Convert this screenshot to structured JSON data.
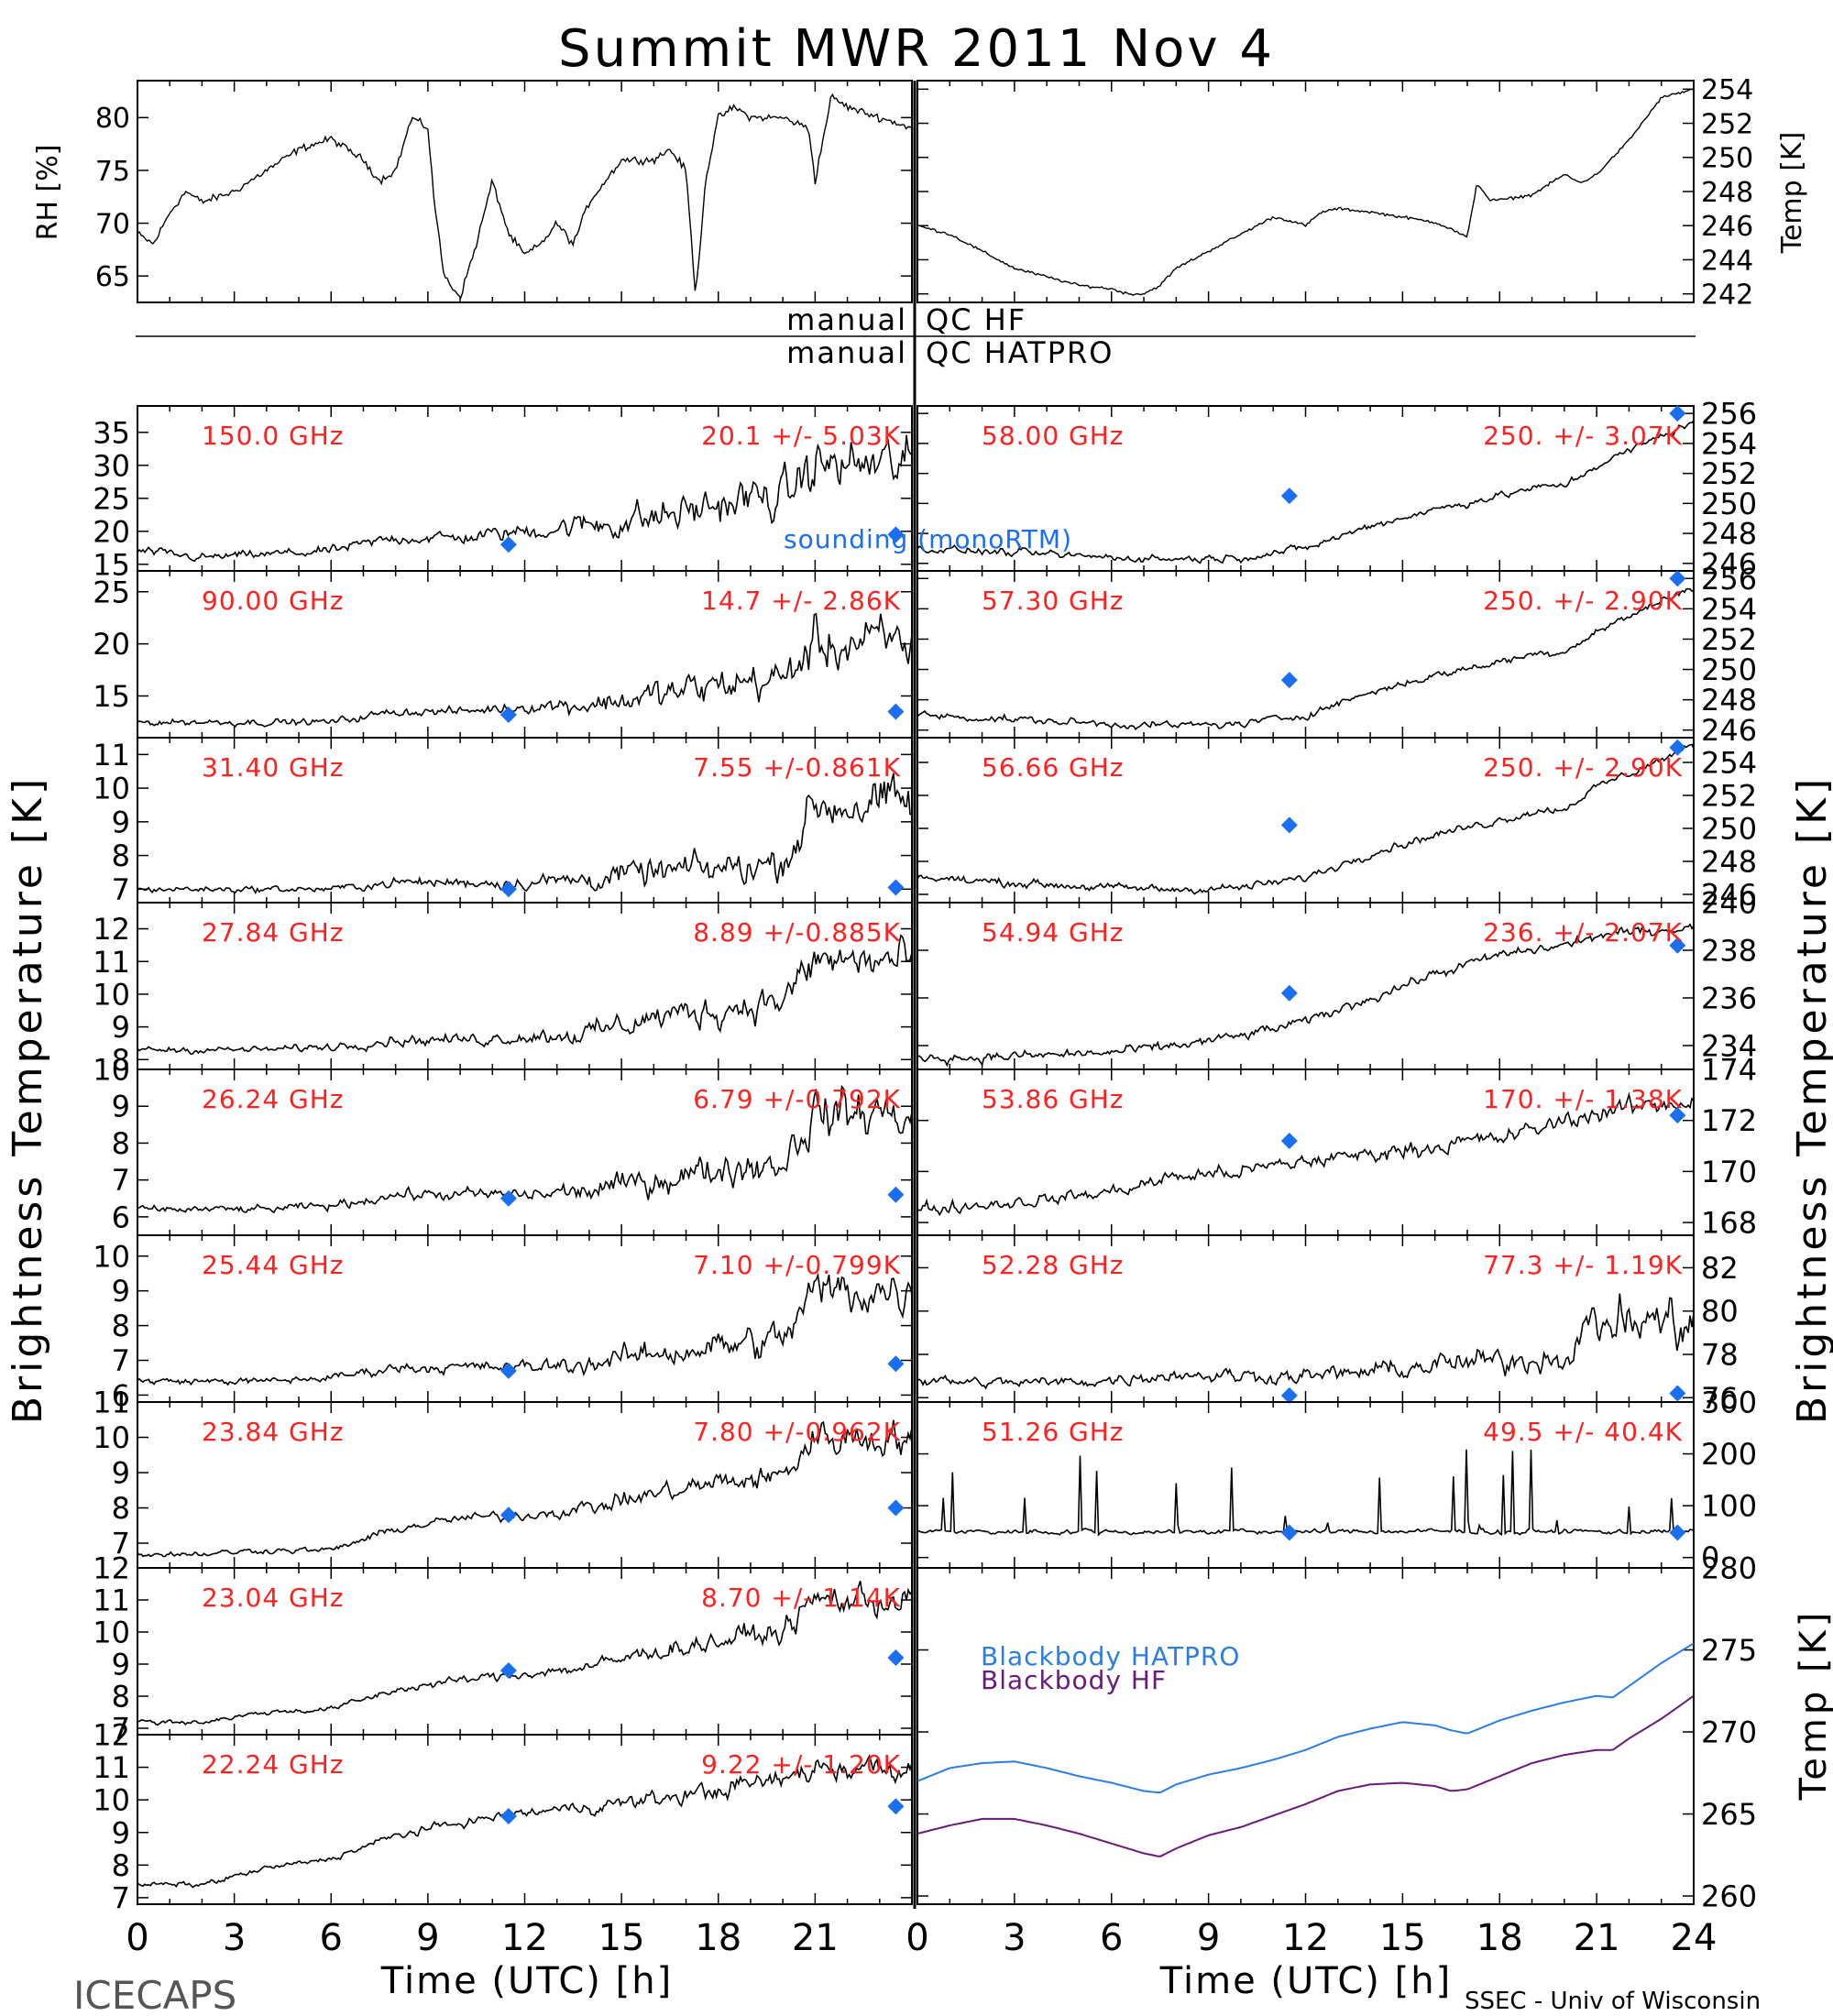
{
  "title": "Summit MWR 2011 Nov  4",
  "footer": {
    "left": "ICECAPS",
    "xlabel": "Time (UTC) [h]",
    "credit": "SSEC - Univ of Wisconsin"
  },
  "qc": {
    "label1": "manual",
    "value1": "QC HF",
    "label2": "manual",
    "value2": "QC HATPRO"
  },
  "legend": {
    "sounding": "sounding (monoRTM)",
    "bb_hatpro": "Blackbody HATPRO",
    "bb_hf": "Blackbody HF"
  },
  "colors": {
    "data": "#000000",
    "annotation": "#ff2020",
    "sounding": "#1a6ef0",
    "bb_hatpro": "#2a7ee8",
    "bb_hf": "#6a1a7a"
  },
  "ylabels": {
    "rh": "RH [%]",
    "temp": "Temp [K]",
    "tb_left": "Brightness Temperature [K]",
    "tb_right": "Brightness Temperature [K]",
    "bb_temp": "Temp [K]"
  },
  "chart_data": [
    {
      "id": "rh",
      "type": "line",
      "ylabel": "RH [%]",
      "ylim": [
        62.5,
        83.5
      ],
      "xlim": [
        0,
        24
      ],
      "yticks": [
        65,
        70,
        75,
        80
      ],
      "x": [
        0,
        0.5,
        1,
        1.5,
        2,
        3,
        4,
        5,
        6,
        6.5,
        7,
        7.5,
        8,
        8.5,
        9,
        9.2,
        9.5,
        10,
        10.5,
        11,
        11.5,
        12,
        12.5,
        13,
        13.5,
        14,
        15,
        16,
        16.5,
        17,
        17.3,
        17.6,
        18,
        18.5,
        19,
        20,
        20.8,
        21,
        21.5,
        22,
        23,
        24
      ],
      "y": [
        69,
        68,
        71,
        73,
        72,
        73,
        75,
        77,
        78,
        77,
        76,
        74,
        75,
        80,
        79,
        72,
        65,
        63,
        68,
        74,
        69,
        67,
        68,
        70,
        68,
        72,
        76,
        76,
        77,
        75,
        63,
        74,
        80,
        81,
        80,
        80,
        79,
        74,
        82,
        81,
        80,
        79
      ]
    },
    {
      "id": "temp",
      "type": "line",
      "ylabel": "Temp [K]",
      "ylim": [
        241.5,
        254.5
      ],
      "xlim": [
        0,
        24
      ],
      "yticks": [
        242,
        244,
        246,
        248,
        250,
        252,
        254
      ],
      "x": [
        0,
        1,
        2,
        3,
        4,
        5,
        6,
        6.5,
        7,
        7.5,
        8,
        9,
        10,
        11,
        11.5,
        12,
        12.5,
        13,
        14,
        15,
        16,
        16.5,
        17,
        17.3,
        17.7,
        18,
        19,
        20,
        20.5,
        21,
        22,
        23,
        24
      ],
      "y": [
        246,
        245.5,
        244.5,
        243.5,
        243,
        242.5,
        242.3,
        242,
        242,
        242.5,
        243.5,
        244.5,
        245.5,
        246.5,
        246.3,
        246,
        246.8,
        247,
        246.8,
        246.5,
        246.2,
        245.8,
        245.3,
        248.5,
        247.5,
        247.5,
        247.8,
        249,
        248.5,
        249,
        251,
        253.5,
        254
      ]
    },
    {
      "id": "ch150",
      "type": "scatter",
      "freq_label": "150.0 GHz",
      "stats_label": "20.1 +/-  5.03K",
      "ylim": [
        14,
        39
      ],
      "yticks": [
        15,
        20,
        25,
        30,
        35
      ],
      "baseline": [
        17,
        16,
        16.5,
        17,
        19,
        19,
        20,
        21,
        22,
        24,
        25,
        25,
        30,
        30
      ],
      "noise": [
        0.8,
        0.8,
        0.8,
        0.9,
        1.1,
        1.2,
        1.5,
        2.5,
        3.5,
        3.5,
        4,
        4,
        5,
        5
      ],
      "sounding": [
        [
          11.5,
          18
        ],
        [
          23.5,
          19.5
        ]
      ]
    },
    {
      "id": "ch90",
      "type": "scatter",
      "freq_label": "90.00 GHz",
      "stats_label": "14.7 +/-  2.86K",
      "ylim": [
        11,
        27
      ],
      "yticks": [
        15,
        20,
        25
      ],
      "baseline": [
        12.5,
        12.5,
        12.5,
        12.5,
        13.5,
        13.5,
        14,
        14.2,
        15,
        16,
        16.5,
        16.5,
        20,
        20
      ],
      "noise": [
        0.4,
        0.4,
        0.4,
        0.4,
        0.5,
        0.5,
        0.7,
        1.2,
        1.8,
        2,
        2.2,
        2.2,
        3,
        3
      ],
      "sounding": [
        [
          11.5,
          13.2
        ],
        [
          23.5,
          13.5
        ]
      ]
    },
    {
      "id": "ch314",
      "type": "scatter",
      "freq_label": "31.40 GHz",
      "stats_label": "7.55 +/-0.861K",
      "ylim": [
        6.6,
        11.5
      ],
      "yticks": [
        7,
        8,
        9,
        10,
        11
      ],
      "baseline": [
        7,
        7,
        7,
        7,
        7.2,
        7.2,
        7.2,
        7.3,
        7.5,
        7.6,
        7.7,
        7.8,
        9.5,
        9.5
      ],
      "noise": [
        0.12,
        0.12,
        0.12,
        0.12,
        0.18,
        0.2,
        0.25,
        0.4,
        0.5,
        0.6,
        0.6,
        0.6,
        0.9,
        0.9
      ],
      "sounding": [
        [
          11.5,
          7
        ],
        [
          23.5,
          7.05
        ]
      ]
    },
    {
      "id": "ch2784",
      "type": "scatter",
      "freq_label": "27.84 GHz",
      "stats_label": "8.89 +/-0.885K",
      "ylim": [
        7.7,
        12.8
      ],
      "yticks": [
        8,
        9,
        10,
        11,
        12
      ],
      "baseline": [
        8.3,
        8.3,
        8.3,
        8.4,
        8.6,
        8.6,
        8.7,
        8.8,
        9.3,
        9.5,
        9.7,
        9.8,
        11,
        11
      ],
      "noise": [
        0.12,
        0.12,
        0.12,
        0.15,
        0.2,
        0.22,
        0.25,
        0.4,
        0.5,
        0.6,
        0.6,
        0.6,
        0.8,
        0.8
      ],
      "sounding": []
    },
    {
      "id": "ch2624",
      "type": "scatter",
      "freq_label": "26.24 GHz",
      "stats_label": "6.79 +/-0.792K",
      "ylim": [
        5.5,
        10
      ],
      "yticks": [
        6,
        7,
        8,
        9,
        10
      ],
      "baseline": [
        6.2,
        6.2,
        6.2,
        6.3,
        6.6,
        6.6,
        6.6,
        6.7,
        7,
        7.3,
        7.4,
        7.5,
        8.8,
        8.8
      ],
      "noise": [
        0.12,
        0.12,
        0.12,
        0.14,
        0.18,
        0.2,
        0.22,
        0.35,
        0.45,
        0.55,
        0.6,
        0.6,
        0.8,
        0.8
      ],
      "sounding": [
        [
          11.5,
          6.5
        ],
        [
          23.5,
          6.6
        ]
      ]
    },
    {
      "id": "ch2544",
      "type": "scatter",
      "freq_label": "25.44 GHz",
      "stats_label": "7.10 +/-0.799K",
      "ylim": [
        5.8,
        10.6
      ],
      "yticks": [
        6,
        7,
        8,
        9,
        10
      ],
      "baseline": [
        6.4,
        6.4,
        6.4,
        6.5,
        6.8,
        6.8,
        6.8,
        6.9,
        7.2,
        7.4,
        7.5,
        7.6,
        9,
        9
      ],
      "noise": [
        0.12,
        0.12,
        0.12,
        0.14,
        0.18,
        0.2,
        0.22,
        0.35,
        0.45,
        0.55,
        0.6,
        0.6,
        0.8,
        0.8
      ],
      "sounding": [
        [
          11.5,
          6.7
        ],
        [
          23.5,
          6.9
        ]
      ]
    },
    {
      "id": "ch2384",
      "type": "scatter",
      "freq_label": "23.84 GHz",
      "stats_label": "7.80 +/-0.962K",
      "ylim": [
        6.3,
        11
      ],
      "yticks": [
        7,
        8,
        9,
        10,
        11
      ],
      "baseline": [
        6.7,
        6.7,
        6.8,
        6.8,
        7.4,
        7.7,
        7.8,
        8,
        8.4,
        8.7,
        8.8,
        8.9,
        10,
        10
      ],
      "noise": [
        0.1,
        0.1,
        0.1,
        0.1,
        0.15,
        0.15,
        0.18,
        0.25,
        0.3,
        0.4,
        0.4,
        0.4,
        0.6,
        0.6
      ],
      "sounding": [
        [
          11.5,
          7.8
        ],
        [
          23.5,
          8
        ]
      ]
    },
    {
      "id": "ch2304",
      "type": "scatter",
      "freq_label": "23.04 GHz",
      "stats_label": "8.70 +/-  1.14K",
      "ylim": [
        6.8,
        12
      ],
      "yticks": [
        7,
        8,
        9,
        10,
        11,
        12
      ],
      "baseline": [
        7.2,
        7.2,
        7.5,
        7.6,
        8.2,
        8.5,
        8.7,
        8.9,
        9.4,
        9.7,
        9.9,
        10,
        11,
        11
      ],
      "noise": [
        0.1,
        0.1,
        0.1,
        0.1,
        0.15,
        0.15,
        0.18,
        0.25,
        0.3,
        0.4,
        0.4,
        0.4,
        0.6,
        0.6
      ],
      "sounding": [
        [
          11.5,
          8.8
        ],
        [
          23.5,
          9.2
        ]
      ]
    },
    {
      "id": "ch2224",
      "type": "scatter",
      "freq_label": "22.24 GHz",
      "stats_label": "9.22 +/-  1.20K",
      "ylim": [
        6.8,
        12
      ],
      "yticks": [
        7,
        8,
        9,
        10,
        11,
        12
      ],
      "baseline": [
        7.4,
        7.4,
        7.9,
        8.2,
        8.9,
        9.3,
        9.6,
        9.8,
        10,
        10.3,
        10.5,
        10.6,
        11,
        11
      ],
      "noise": [
        0.1,
        0.1,
        0.1,
        0.1,
        0.15,
        0.15,
        0.18,
        0.25,
        0.3,
        0.35,
        0.35,
        0.35,
        0.5,
        0.5
      ],
      "sounding": [
        [
          11.5,
          9.5
        ],
        [
          23.5,
          9.8
        ]
      ]
    },
    {
      "id": "ch5800",
      "type": "scatter",
      "freq_label": "58.00 GHz",
      "stats_label": "250. +/-  3.07K",
      "ylim": [
        245.5,
        256.5
      ],
      "yticks": [
        246,
        248,
        250,
        252,
        254,
        256
      ],
      "baseline": [
        247,
        246.8,
        246.6,
        246.4,
        246.3,
        246.4,
        247,
        248.5,
        249.6,
        250.5,
        251,
        251.2,
        252.5,
        255.5
      ],
      "noise": [
        0.3,
        0.3,
        0.3,
        0.3,
        0.3,
        0.3,
        0.3,
        0.3,
        0.3,
        0.3,
        0.3,
        0.3,
        0.3,
        0.3
      ],
      "sounding": [
        [
          11.5,
          250.5
        ],
        [
          23.5,
          256
        ]
      ]
    },
    {
      "id": "ch5730",
      "type": "scatter",
      "freq_label": "57.30 GHz",
      "stats_label": "250. +/-  2.90K",
      "ylim": [
        245.5,
        256.5
      ],
      "yticks": [
        246,
        248,
        250,
        252,
        254,
        256
      ],
      "baseline": [
        247,
        246.8,
        246.6,
        246.4,
        246.3,
        246.4,
        247,
        248.5,
        249.6,
        250.5,
        251,
        251.2,
        252.5,
        255.5
      ],
      "noise": [
        0.3,
        0.3,
        0.3,
        0.3,
        0.3,
        0.3,
        0.3,
        0.3,
        0.3,
        0.3,
        0.3,
        0.3,
        0.3,
        0.3
      ],
      "sounding": [
        [
          11.5,
          249.3
        ],
        [
          23.5,
          256
        ]
      ]
    },
    {
      "id": "ch5666",
      "type": "scatter",
      "freq_label": "56.66 GHz",
      "stats_label": "250. +/-  2.90K",
      "ylim": [
        245.5,
        255.5
      ],
      "yticks": [
        246,
        248,
        250,
        252,
        254
      ],
      "baseline": [
        247,
        246.8,
        246.6,
        246.4,
        246.3,
        246.4,
        247,
        248.5,
        249.6,
        250.5,
        251,
        251.2,
        252.5,
        255
      ],
      "noise": [
        0.3,
        0.3,
        0.3,
        0.3,
        0.3,
        0.3,
        0.3,
        0.3,
        0.3,
        0.3,
        0.3,
        0.3,
        0.3,
        0.3
      ],
      "sounding": [
        [
          11.5,
          250.2
        ],
        [
          23.5,
          254.9
        ]
      ]
    },
    {
      "id": "ch5494",
      "type": "scatter",
      "freq_label": "54.94 GHz",
      "stats_label": "236. +/-  2.07K",
      "ylim": [
        233,
        240
      ],
      "yticks": [
        234,
        236,
        238,
        240
      ],
      "baseline": [
        233.5,
        233.5,
        233.6,
        233.7,
        234,
        234.4,
        235,
        236,
        237,
        237.8,
        238,
        238.2,
        238.6,
        239
      ],
      "noise": [
        0.25,
        0.25,
        0.25,
        0.25,
        0.25,
        0.25,
        0.25,
        0.25,
        0.25,
        0.25,
        0.25,
        0.25,
        0.25,
        0.25
      ],
      "sounding": [
        [
          11.5,
          236.2
        ],
        [
          23.5,
          238.2
        ]
      ]
    },
    {
      "id": "ch5386",
      "type": "scatter",
      "freq_label": "53.86 GHz",
      "stats_label": "170. +/-  1.38K",
      "ylim": [
        167.5,
        174
      ],
      "yticks": [
        168,
        170,
        172,
        174
      ],
      "baseline": [
        168.5,
        168.7,
        168.9,
        169.2,
        169.8,
        170,
        170.4,
        170.7,
        171,
        171.3,
        171.6,
        172,
        172.3,
        172.8
      ],
      "noise": [
        0.3,
        0.3,
        0.3,
        0.3,
        0.35,
        0.35,
        0.35,
        0.35,
        0.4,
        0.4,
        0.4,
        0.4,
        0.45,
        0.45
      ],
      "sounding": [
        [
          11.5,
          171.2
        ],
        [
          23.5,
          172.2
        ]
      ]
    },
    {
      "id": "ch5228",
      "type": "scatter",
      "freq_label": "52.28 GHz",
      "stats_label": "77.3 +/-  1.19K",
      "ylim": [
        75.8,
        83.5
      ],
      "yticks": [
        76,
        78,
        80,
        82
      ],
      "baseline": [
        76.8,
        76.7,
        76.7,
        76.8,
        77.1,
        77,
        77,
        77.2,
        77.5,
        77.7,
        77.8,
        77.9,
        79.5,
        79.5
      ],
      "noise": [
        0.3,
        0.3,
        0.3,
        0.3,
        0.4,
        0.4,
        0.4,
        0.5,
        0.6,
        0.7,
        0.7,
        0.7,
        1.5,
        1.5
      ],
      "sounding": [
        [
          11.5,
          76.1
        ],
        [
          23.5,
          76.2
        ]
      ]
    },
    {
      "id": "ch5126",
      "type": "scatter",
      "freq_label": "51.26 GHz",
      "stats_label": "49.5 +/-  40.4K",
      "ylim": [
        -20,
        300
      ],
      "yticks": [
        0,
        100,
        200,
        300
      ],
      "baseline": [
        50,
        50,
        50,
        50,
        50,
        50,
        50,
        50,
        50,
        50,
        50,
        50,
        50,
        50
      ],
      "noise": [
        6,
        6,
        6,
        6,
        6,
        6,
        6,
        6,
        6,
        6,
        6,
        6,
        6,
        6
      ],
      "sounding": [
        [
          11.5,
          48
        ],
        [
          23.5,
          48
        ]
      ]
    },
    {
      "id": "blackbody",
      "type": "line",
      "ylabel": "Temp [K]",
      "ylim": [
        259.5,
        280
      ],
      "xlim": [
        0,
        24
      ],
      "yticks": [
        260,
        265,
        270,
        275,
        280
      ],
      "series": [
        {
          "name": "Blackbody HATPRO",
          "x": [
            0,
            1,
            2,
            3,
            4,
            5,
            6,
            7,
            7.5,
            8,
            9,
            10,
            11,
            12,
            13,
            14,
            15,
            16,
            16.5,
            17,
            18,
            19,
            20,
            21,
            21.5,
            22,
            23,
            24
          ],
          "y": [
            267,
            267.8,
            268.1,
            268.2,
            267.8,
            267.3,
            266.9,
            266.4,
            266.3,
            266.8,
            267.4,
            267.8,
            268.3,
            268.9,
            269.7,
            270.2,
            270.6,
            270.4,
            270.1,
            269.9,
            270.7,
            271.3,
            271.8,
            272.2,
            272.1,
            272.8,
            274.2,
            275.4
          ]
        },
        {
          "name": "Blackbody HF",
          "x": [
            0,
            1,
            2,
            3,
            4,
            5,
            6,
            7,
            7.5,
            8,
            9,
            10,
            11,
            12,
            13,
            14,
            15,
            16,
            16.5,
            17,
            18,
            19,
            20,
            21,
            21.5,
            22,
            23,
            24
          ],
          "y": [
            263.8,
            264.3,
            264.7,
            264.7,
            264.3,
            263.8,
            263.2,
            262.6,
            262.4,
            262.9,
            263.7,
            264.2,
            264.9,
            265.6,
            266.4,
            266.8,
            266.9,
            266.7,
            266.4,
            266.5,
            267.3,
            268.1,
            268.6,
            268.9,
            268.9,
            269.6,
            270.8,
            272.2
          ]
        }
      ]
    }
  ],
  "xaxis": {
    "range": [
      0,
      24
    ],
    "ticks": [
      "0",
      "3",
      "6",
      "9",
      "12",
      "15",
      "18",
      "21",
      "0",
      "3",
      "6",
      "9",
      "12",
      "15",
      "18",
      "21",
      "24"
    ]
  }
}
